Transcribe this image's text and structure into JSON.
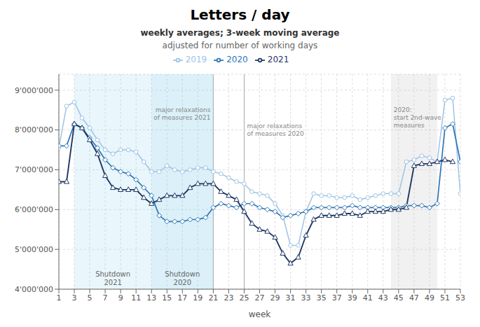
{
  "chart_data": {
    "type": "line",
    "title": "Letters / day",
    "subtitle": "weekly averages; 3-week moving average",
    "subtitle2": "adjusted for number of working days",
    "x_label": "week",
    "x": [
      1,
      2,
      3,
      4,
      5,
      6,
      7,
      8,
      9,
      10,
      11,
      12,
      13,
      14,
      15,
      16,
      17,
      18,
      19,
      20,
      21,
      22,
      23,
      24,
      25,
      26,
      27,
      28,
      29,
      30,
      31,
      32,
      33,
      34,
      35,
      36,
      37,
      38,
      39,
      40,
      41,
      42,
      43,
      44,
      45,
      46,
      47,
      48,
      49,
      50,
      51,
      52,
      53
    ],
    "series": [
      {
        "name": "2019",
        "color": "#9dc3e6",
        "marker": "circle",
        "values": [
          7550000,
          8600000,
          8700000,
          8300000,
          8050000,
          7750000,
          7500000,
          7400000,
          7500000,
          7500000,
          7450000,
          7200000,
          6950000,
          6950000,
          7100000,
          7000000,
          6950000,
          7000000,
          7050000,
          7050000,
          6950000,
          6900000,
          6800000,
          6700000,
          6650000,
          6450000,
          6400000,
          6350000,
          6150000,
          5850000,
          5100000,
          5100000,
          5950000,
          6400000,
          6350000,
          6350000,
          6300000,
          6300000,
          6350000,
          6250000,
          6300000,
          6350000,
          6400000,
          6400000,
          6400000,
          7200000,
          7250000,
          7350000,
          7300000,
          7200000,
          8750000,
          8800000,
          6400000
        ]
      },
      {
        "name": "2020",
        "color": "#2e75b6",
        "marker": "diamond",
        "values": [
          7600000,
          7600000,
          8150000,
          8050000,
          7800000,
          7550000,
          7250000,
          7050000,
          6950000,
          6900000,
          6750000,
          6550000,
          6350000,
          5850000,
          5700000,
          5700000,
          5700000,
          5750000,
          5750000,
          5800000,
          6050000,
          6150000,
          6100000,
          6050000,
          6150000,
          6150000,
          6050000,
          6000000,
          5950000,
          5800000,
          5850000,
          5900000,
          5950000,
          6050000,
          6050000,
          6050000,
          6050000,
          6050000,
          6100000,
          6050000,
          6050000,
          6050000,
          6050000,
          6050000,
          6050000,
          6100000,
          6100000,
          6100000,
          6050000,
          6150000,
          8050000,
          8150000,
          7200000
        ]
      },
      {
        "name": "2021",
        "color": "#1f3864",
        "marker": "triangle",
        "values": [
          6700000,
          6700000,
          8150000,
          8050000,
          7750000,
          7400000,
          6850000,
          6550000,
          6500000,
          6500000,
          6500000,
          6300000,
          6150000,
          6250000,
          6350000,
          6350000,
          6350000,
          6550000,
          6650000,
          6650000,
          6650000,
          6450000,
          6350000,
          6250000,
          5950000,
          5650000,
          5500000,
          5450000,
          5300000,
          4900000,
          4650000,
          4800000,
          5350000,
          5750000,
          5850000,
          5850000,
          5850000,
          5900000,
          5900000,
          5850000,
          5950000,
          5950000,
          5950000,
          6000000,
          6000000,
          6050000,
          7100000,
          7150000,
          7150000,
          7200000,
          7250000,
          7200000,
          null
        ]
      }
    ],
    "xlim": [
      1,
      53
    ],
    "xticks": [
      1,
      3,
      5,
      7,
      9,
      11,
      13,
      15,
      17,
      19,
      21,
      23,
      25,
      27,
      29,
      31,
      33,
      35,
      37,
      39,
      41,
      43,
      45,
      47,
      49,
      51,
      53
    ],
    "ylim": [
      4000000,
      9400000
    ],
    "yticks": [
      {
        "value": 4000000,
        "label": "4'000'000"
      },
      {
        "value": 5000000,
        "label": "5'000'000"
      },
      {
        "value": 6000000,
        "label": "6'000'000"
      },
      {
        "value": 7000000,
        "label": "7'000'000"
      },
      {
        "value": 8000000,
        "label": "8'000'000"
      },
      {
        "value": 9000000,
        "label": "9'000'000"
      }
    ],
    "grid": true,
    "legend": "top",
    "shaded_regions": [
      {
        "x": [
          3,
          13
        ],
        "color": "#87ceeb",
        "label": "Shutdown\n2021"
      },
      {
        "x": [
          13,
          21
        ],
        "color": "#87ceeb",
        "label": "Shutdown\n2020"
      },
      {
        "x": [
          44,
          50
        ],
        "color": "#bbbbbb"
      }
    ],
    "vertical_lines": [
      21,
      25
    ],
    "annotations": [
      {
        "text": "major relaxations\nof measures 2021",
        "x": 21,
        "y": 8600000,
        "align": "right"
      },
      {
        "text": "major relaxations\nof measures 2020",
        "x": 25,
        "y": 8200000,
        "align": "left"
      },
      {
        "text": "2020:\nstart 2nd-wave\nmeasures",
        "x": 44,
        "y": 8600000,
        "align": "left"
      }
    ]
  }
}
